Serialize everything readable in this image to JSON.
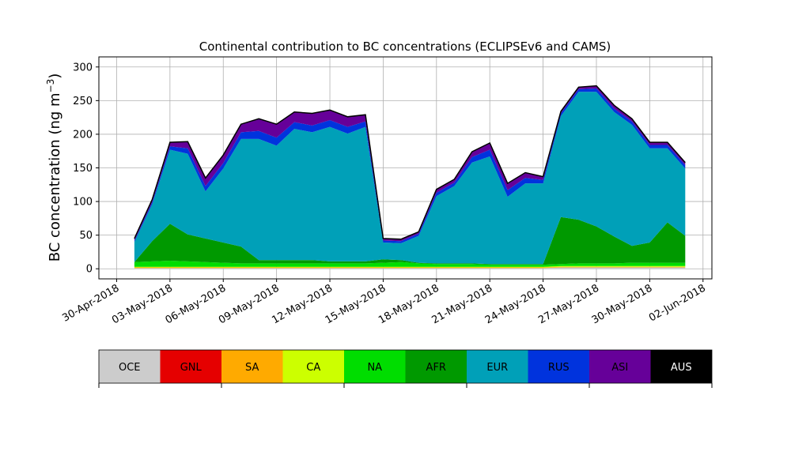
{
  "chart_data": {
    "type": "area",
    "title": "Continental contribution to BC concentrations (ECLIPSEv6 and CAMS)",
    "xlabel": "",
    "ylabel": "BC concentration (ng m",
    "ylabel_unit_exponent": "−3",
    "ylabel_close": ")",
    "xlim": [
      "2018-04-29T00:00",
      "2018-06-02T12:00"
    ],
    "ylim": [
      -15,
      315
    ],
    "yticks": [
      0,
      50,
      100,
      150,
      200,
      250,
      300
    ],
    "xticks": [
      {
        "date": "2018-04-30",
        "label": "30-Apr-2018"
      },
      {
        "date": "2018-05-03",
        "label": "03-May-2018"
      },
      {
        "date": "2018-05-06",
        "label": "06-May-2018"
      },
      {
        "date": "2018-05-09",
        "label": "09-May-2018"
      },
      {
        "date": "2018-05-12",
        "label": "12-May-2018"
      },
      {
        "date": "2018-05-15",
        "label": "15-May-2018"
      },
      {
        "date": "2018-05-18",
        "label": "18-May-2018"
      },
      {
        "date": "2018-05-21",
        "label": "21-May-2018"
      },
      {
        "date": "2018-05-24",
        "label": "24-May-2018"
      },
      {
        "date": "2018-05-27",
        "label": "27-May-2018"
      },
      {
        "date": "2018-05-30",
        "label": "30-May-2018"
      },
      {
        "date": "2018-06-02",
        "label": "02-Jun-2018"
      }
    ],
    "grid": true,
    "stacked": true,
    "x": [
      "2018-05-01",
      "2018-05-02",
      "2018-05-03",
      "2018-05-04",
      "2018-05-05",
      "2018-05-06",
      "2018-05-07",
      "2018-05-08",
      "2018-05-09",
      "2018-05-10",
      "2018-05-11",
      "2018-05-12",
      "2018-05-13",
      "2018-05-14",
      "2018-05-15",
      "2018-05-16",
      "2018-05-17",
      "2018-05-18",
      "2018-05-19",
      "2018-05-20",
      "2018-05-21",
      "2018-05-22",
      "2018-05-23",
      "2018-05-24",
      "2018-05-25",
      "2018-05-26",
      "2018-05-27",
      "2018-05-28",
      "2018-05-29",
      "2018-05-30",
      "2018-05-31",
      "2018-06-01"
    ],
    "series": [
      {
        "name": "OCE",
        "color": "#cccccc",
        "values": [
          1,
          1,
          1,
          1,
          1,
          1,
          1,
          1,
          1,
          1,
          1,
          1,
          1,
          1,
          1,
          1,
          1,
          1,
          1,
          1,
          1,
          1,
          1,
          1,
          2,
          2,
          2,
          2,
          2,
          2,
          2,
          2
        ]
      },
      {
        "name": "GNL",
        "color": "#e50000",
        "values": [
          0,
          0,
          0,
          0,
          0,
          0,
          0,
          0,
          0,
          0,
          0,
          0,
          0,
          0,
          0,
          0,
          0,
          0,
          0,
          0,
          0,
          0,
          0,
          0,
          0,
          0,
          0,
          0,
          0,
          0,
          0,
          0
        ]
      },
      {
        "name": "SA",
        "color": "#ffaa00",
        "values": [
          1,
          1,
          1,
          1,
          1,
          1,
          1,
          1,
          1,
          1,
          1,
          1,
          1,
          1,
          1,
          1,
          1,
          1,
          1,
          1,
          1,
          1,
          1,
          1,
          1,
          1,
          1,
          1,
          1,
          1,
          1,
          1
        ]
      },
      {
        "name": "CA",
        "color": "#ccff00",
        "values": [
          1,
          1,
          1,
          1,
          1,
          1,
          1,
          1,
          1,
          1,
          1,
          1,
          1,
          1,
          1,
          1,
          1,
          1,
          1,
          1,
          1,
          1,
          1,
          1,
          1,
          1,
          1,
          1,
          1,
          1,
          1,
          1
        ]
      },
      {
        "name": "NA",
        "color": "#00dd00",
        "values": [
          7,
          8,
          9,
          8,
          7,
          6,
          5,
          5,
          5,
          5,
          5,
          5,
          5,
          5,
          6,
          7,
          5,
          4,
          4,
          4,
          3,
          3,
          3,
          3,
          3,
          4,
          4,
          4,
          5,
          5,
          5,
          5
        ]
      },
      {
        "name": "AFR",
        "color": "#009900",
        "values": [
          0,
          30,
          55,
          40,
          35,
          30,
          25,
          5,
          5,
          5,
          5,
          3,
          3,
          3,
          5,
          3,
          1,
          1,
          1,
          1,
          1,
          1,
          1,
          1,
          70,
          65,
          55,
          40,
          25,
          30,
          60,
          40
        ]
      },
      {
        "name": "EUR",
        "color": "#00a0b8",
        "values": [
          30,
          55,
          110,
          120,
          70,
          110,
          160,
          180,
          170,
          195,
          190,
          200,
          190,
          200,
          25,
          25,
          40,
          100,
          115,
          150,
          160,
          100,
          120,
          120,
          150,
          190,
          200,
          185,
          180,
          140,
          110,
          100
        ]
      },
      {
        "name": "RUS",
        "color": "#0033dd",
        "values": [
          2,
          3,
          5,
          8,
          8,
          8,
          10,
          12,
          12,
          10,
          10,
          10,
          10,
          8,
          3,
          3,
          3,
          5,
          5,
          8,
          10,
          10,
          8,
          5,
          4,
          4,
          5,
          5,
          5,
          5,
          5,
          5
        ]
      },
      {
        "name": "ASI",
        "color": "#660099",
        "values": [
          3,
          4,
          6,
          10,
          12,
          12,
          12,
          18,
          20,
          15,
          18,
          15,
          15,
          10,
          3,
          3,
          3,
          5,
          5,
          8,
          10,
          10,
          8,
          5,
          3,
          3,
          4,
          5,
          4,
          4,
          4,
          4
        ]
      },
      {
        "name": "AUS",
        "color": "#000000",
        "values": [
          0,
          0,
          0,
          0,
          0,
          0,
          0,
          0,
          0,
          0,
          0,
          0,
          0,
          0,
          0,
          0,
          0,
          0,
          0,
          0,
          0,
          0,
          0,
          0,
          0,
          0,
          0,
          0,
          0,
          0,
          0,
          0
        ]
      }
    ],
    "total_line": {
      "color": "#000000"
    },
    "legend": {
      "placement": "bottom",
      "orientation": "horizontal"
    }
  }
}
